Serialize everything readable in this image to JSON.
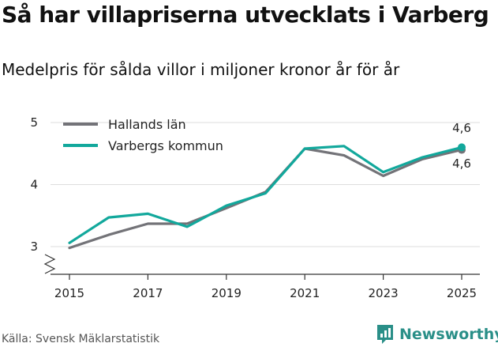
{
  "title": "Så har villapriserna utvecklats i Varberg",
  "subtitle": "Medelpris för sålda villor i miljoner kronor år för år",
  "source": "Källa: Svensk Mäklarstatistik",
  "brand": "Newsworthy",
  "colors": {
    "hallands": "#737378",
    "varbergs": "#12a89c",
    "grid": "#dddddd",
    "brand": "#2a8f88"
  },
  "chart_data": {
    "type": "line",
    "title": "Så har villapriserna utvecklats i Varberg",
    "subtitle": "Medelpris för sålda villor i miljoner kronor år för år",
    "xlabel": "",
    "ylabel": "",
    "x": [
      2015,
      2016,
      2017,
      2018,
      2019,
      2020,
      2021,
      2022,
      2023,
      2024,
      2025
    ],
    "xticks": [
      "2015",
      "2017",
      "2019",
      "2021",
      "2023",
      "2025"
    ],
    "yticks": [
      "3",
      "4",
      "5"
    ],
    "ylim": [
      2.5,
      5.1
    ],
    "axis_break": true,
    "legend_position": "top-left",
    "series": [
      {
        "name": "Hallands län",
        "values": [
          2.98,
          3.19,
          3.37,
          3.37,
          3.62,
          3.88,
          4.58,
          4.47,
          4.14,
          4.41,
          4.56
        ],
        "end_label": "4,6"
      },
      {
        "name": "Varbergs kommun",
        "values": [
          3.06,
          3.47,
          3.53,
          3.32,
          3.66,
          3.86,
          4.58,
          4.62,
          4.2,
          4.44,
          4.6
        ],
        "end_label": "4,6"
      }
    ]
  }
}
